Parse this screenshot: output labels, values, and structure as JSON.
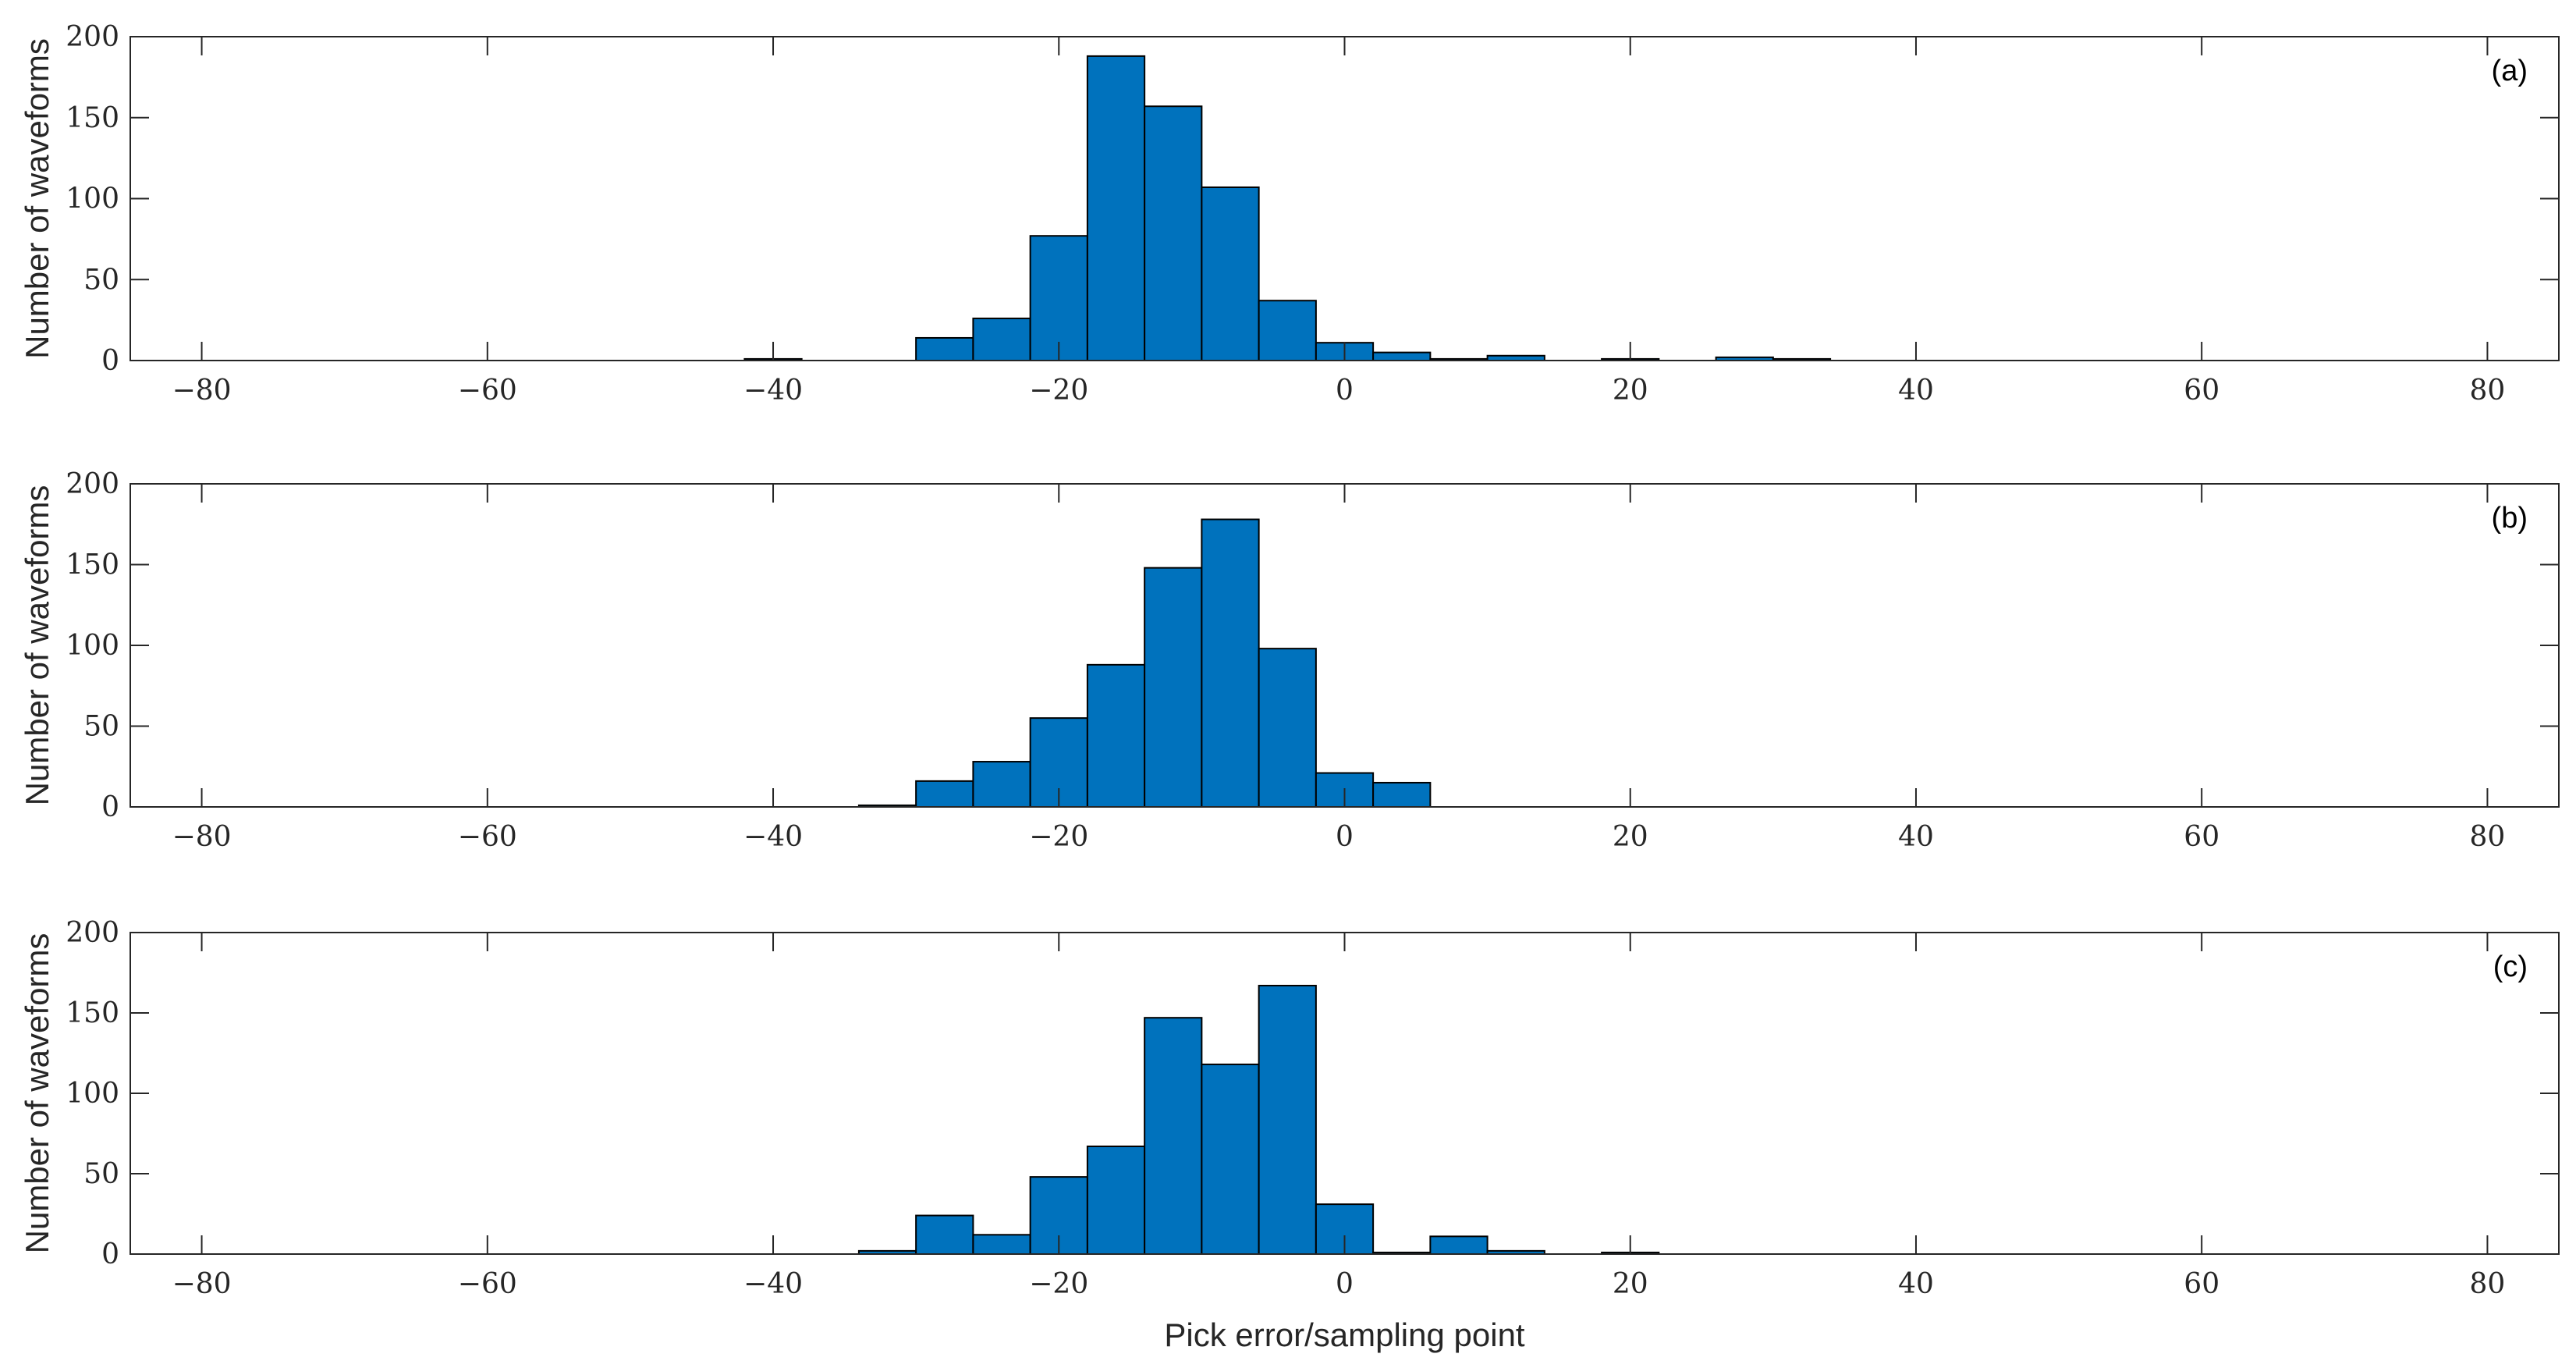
{
  "chart_data": [
    {
      "type": "bar",
      "panel_label": "(a)",
      "ylabel": "Number of waveforms",
      "xlabel": "",
      "xlim": [
        -85,
        85
      ],
      "ylim": [
        0,
        200
      ],
      "xticks": [
        -80,
        -60,
        -40,
        -20,
        0,
        20,
        40,
        60,
        80
      ],
      "yticks": [
        0,
        50,
        100,
        150,
        200
      ],
      "bin_width": 4,
      "x": [
        -40,
        -28,
        -24,
        -20,
        -16,
        -12,
        -8,
        -4,
        0,
        4,
        8,
        12,
        20,
        28,
        32
      ],
      "values": [
        1,
        14,
        26,
        77,
        188,
        157,
        107,
        37,
        11,
        5,
        1,
        3,
        1,
        2,
        1
      ],
      "color": "#0072BD"
    },
    {
      "type": "bar",
      "panel_label": "(b)",
      "ylabel": "Number of waveforms",
      "xlabel": "",
      "xlim": [
        -85,
        85
      ],
      "ylim": [
        0,
        200
      ],
      "xticks": [
        -80,
        -60,
        -40,
        -20,
        0,
        20,
        40,
        60,
        80
      ],
      "yticks": [
        0,
        50,
        100,
        150,
        200
      ],
      "bin_width": 4,
      "x": [
        -32,
        -28,
        -24,
        -20,
        -16,
        -12,
        -8,
        -4,
        0,
        4
      ],
      "values": [
        1,
        16,
        28,
        55,
        88,
        148,
        178,
        98,
        21,
        15
      ],
      "color": "#0072BD"
    },
    {
      "type": "bar",
      "panel_label": "(c)",
      "ylabel": "Number of waveforms",
      "xlabel": "Pick error/sampling point",
      "xlim": [
        -85,
        85
      ],
      "ylim": [
        0,
        200
      ],
      "xticks": [
        -80,
        -60,
        -40,
        -20,
        0,
        20,
        40,
        60,
        80
      ],
      "yticks": [
        0,
        50,
        100,
        150,
        200
      ],
      "bin_width": 4,
      "x": [
        -32,
        -28,
        -24,
        -20,
        -16,
        -12,
        -8,
        -4,
        0,
        4,
        8,
        12,
        20
      ],
      "values": [
        2,
        24,
        12,
        48,
        67,
        147,
        118,
        167,
        31,
        1,
        11,
        2,
        1
      ],
      "color": "#0072BD"
    }
  ]
}
